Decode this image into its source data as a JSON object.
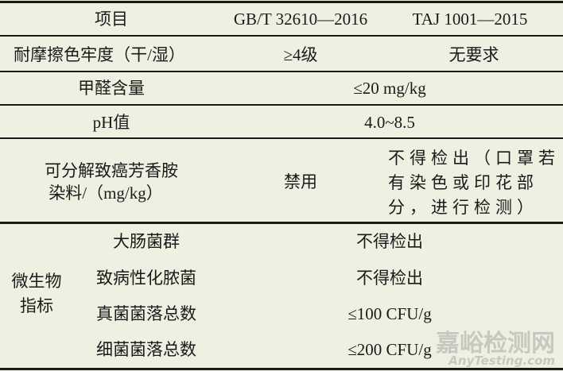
{
  "header": {
    "item": "项目",
    "std1": "GB/T 32610—2016",
    "std2": "TAJ 1001—2015"
  },
  "rows": [
    {
      "item": "耐摩擦色牢度（干/湿）",
      "std1": "≥4级",
      "std2": "无要求"
    },
    {
      "item": "甲醛含量",
      "merged": "≤20 mg/kg"
    },
    {
      "item": "pH值",
      "merged": "4.0~8.5"
    },
    {
      "item_line1": "可分解致癌芳香胺",
      "item_line2": "染料/（mg/kg）",
      "std1": "禁用",
      "std2": "不得检出（口罩若有染色或印花部分，进行检测）"
    }
  ],
  "micro": {
    "group_line1": "微生物",
    "group_line2": "指标",
    "items": [
      {
        "item": "大肠菌群",
        "value": "不得检出"
      },
      {
        "item": "致病性化脓菌",
        "value": "不得检出"
      },
      {
        "item": "真菌菌落总数",
        "value": "≤100 CFU/g"
      },
      {
        "item": "细菌菌落总数",
        "value": "≤200 CFU/g"
      }
    ]
  },
  "watermark": {
    "cn": "嘉峪检测网",
    "en": "AnyTesting.com"
  },
  "colors": {
    "background": "#eef1e1",
    "rule": "#1a1a1a"
  }
}
